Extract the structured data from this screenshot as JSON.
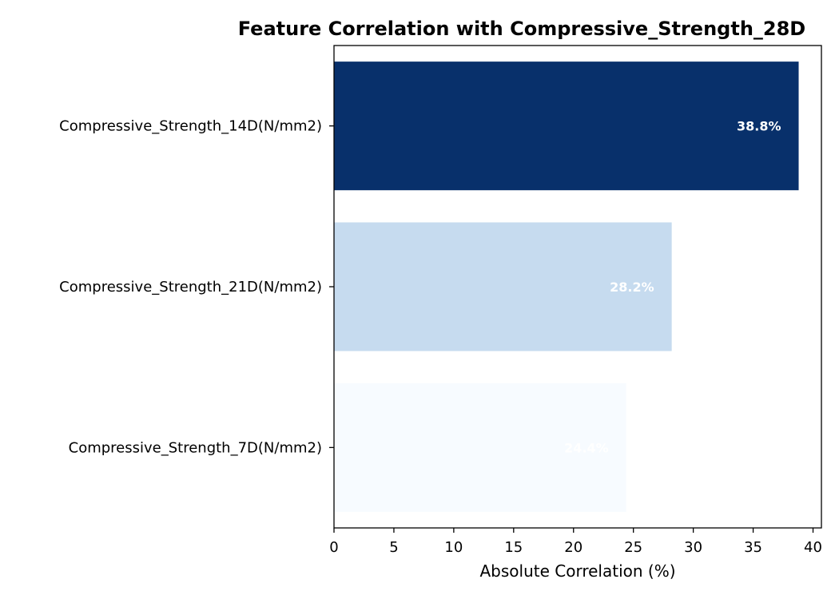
{
  "chart_data": {
    "type": "bar",
    "orientation": "horizontal",
    "title": "Feature Correlation with Compressive_Strength_28D",
    "xlabel": "Absolute Correlation (%)",
    "ylabel": "",
    "xlim": [
      0,
      40.7
    ],
    "xticks": [
      0,
      5,
      10,
      15,
      20,
      25,
      30,
      35,
      40
    ],
    "categories": [
      "Compressive_Strength_14D(N/mm2)",
      "Compressive_Strength_21D(N/mm2)",
      "Compressive_Strength_7D(N/mm2)"
    ],
    "values": [
      38.8,
      28.2,
      24.4
    ],
    "data_labels": [
      "38.8%",
      "28.2%",
      "24.4%"
    ],
    "colors": [
      "#08306b",
      "#c6dbef",
      "#f7fbff"
    ],
    "grid": false,
    "legend": "none"
  }
}
